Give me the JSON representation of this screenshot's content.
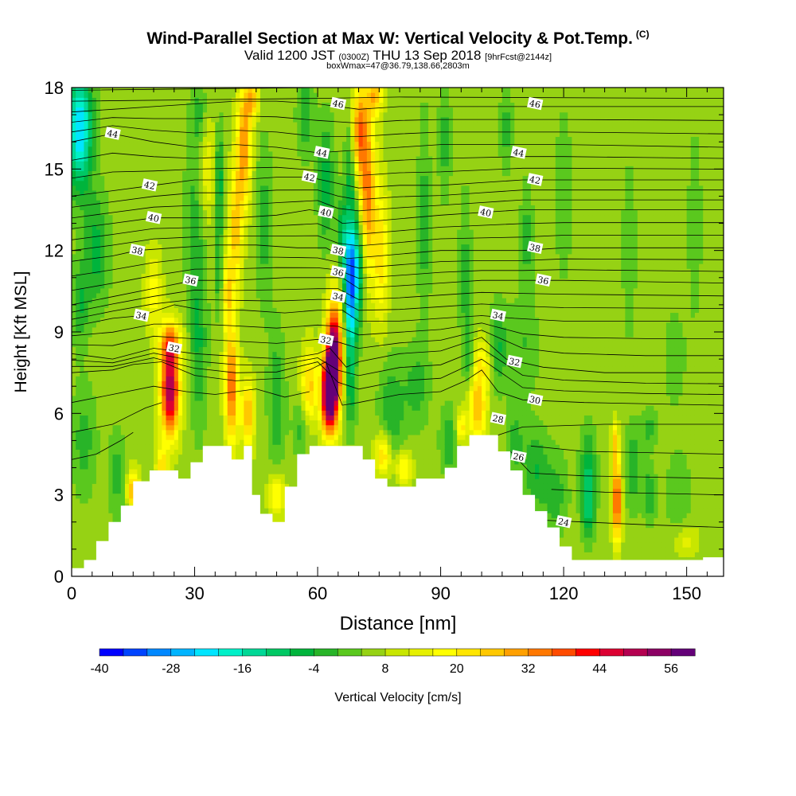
{
  "header": {
    "title": "Wind-Parallel Section at Max W: Vertical Velocity & Pot.Temp.",
    "copyright": "(C)",
    "valid_prefix": "Valid 1200 JST",
    "valid_utc": "(0300Z)",
    "valid_date": "THU 13 Sep 2018",
    "forecast_note": "[9hrFcst@2144z]",
    "box_note": "boxWmax=47@36.79,138.66,2803m"
  },
  "chart_data": {
    "type": "heatmap",
    "title": "Wind-Parallel Section at Max W: Vertical Velocity & Pot.Temp.",
    "xlabel": "Distance [nm]",
    "ylabel": "Height [Kft MSL]",
    "xlim": [
      0,
      159
    ],
    "ylim": [
      0,
      18
    ],
    "x_ticks": [
      0,
      30,
      60,
      90,
      120,
      150
    ],
    "y_ticks": [
      0,
      3,
      6,
      9,
      12,
      15,
      18
    ],
    "colorbar": {
      "label": "Vertical Velocity [cm/s]",
      "levels": [
        -40,
        -36,
        -32,
        -28,
        -24,
        -20,
        -16,
        -12,
        -8,
        -4,
        0,
        4,
        8,
        12,
        16,
        20,
        24,
        28,
        32,
        36,
        40,
        44,
        48,
        52,
        56,
        60
      ],
      "tick_labels": [
        "-40",
        "-28",
        "-16",
        "-4",
        "8",
        "20",
        "32",
        "44",
        "56"
      ],
      "colors": [
        "#0000ff",
        "#0044ff",
        "#0088ff",
        "#00b4ff",
        "#00e5ff",
        "#00f0c8",
        "#00d896",
        "#00c864",
        "#00b43c",
        "#28b428",
        "#5ac81e",
        "#96d214",
        "#c8e600",
        "#e6f000",
        "#ffff00",
        "#ffe600",
        "#ffc800",
        "#ffa000",
        "#ff7800",
        "#ff4b00",
        "#ff0000",
        "#dc0032",
        "#b40050",
        "#8c0064",
        "#640078"
      ]
    },
    "terrain": [
      [
        0,
        0.3
      ],
      [
        3,
        0.3
      ],
      [
        3,
        0.6
      ],
      [
        6,
        0.6
      ],
      [
        6,
        1.3
      ],
      [
        9,
        1.3
      ],
      [
        9,
        2
      ],
      [
        12,
        2
      ],
      [
        12,
        2.6
      ],
      [
        15,
        2.6
      ],
      [
        15,
        3.5
      ],
      [
        19,
        3.5
      ],
      [
        19,
        3.9
      ],
      [
        26,
        3.9
      ],
      [
        26,
        3.6
      ],
      [
        29,
        3.6
      ],
      [
        29,
        4.2
      ],
      [
        32,
        4.2
      ],
      [
        32,
        4.8
      ],
      [
        39,
        4.8
      ],
      [
        39,
        4.3
      ],
      [
        42,
        4.3
      ],
      [
        42,
        4.8
      ],
      [
        44,
        4.8
      ],
      [
        44,
        3
      ],
      [
        46,
        3
      ],
      [
        46,
        2.3
      ],
      [
        49,
        2.3
      ],
      [
        49,
        2
      ],
      [
        52,
        2
      ],
      [
        52,
        3.3
      ],
      [
        55,
        3.3
      ],
      [
        55,
        4.5
      ],
      [
        58,
        4.5
      ],
      [
        58,
        4.8
      ],
      [
        71,
        4.8
      ],
      [
        71,
        4.3
      ],
      [
        74,
        4.3
      ],
      [
        74,
        3.6
      ],
      [
        77,
        3.6
      ],
      [
        77,
        3.3
      ],
      [
        84,
        3.3
      ],
      [
        84,
        3.6
      ],
      [
        91,
        3.6
      ],
      [
        91,
        4
      ],
      [
        94,
        4
      ],
      [
        94,
        4.8
      ],
      [
        97,
        4.8
      ],
      [
        97,
        5.2
      ],
      [
        104,
        5.2
      ],
      [
        104,
        4.6
      ],
      [
        107,
        4.6
      ],
      [
        107,
        3.9
      ],
      [
        110,
        3.9
      ],
      [
        110,
        3
      ],
      [
        113,
        3
      ],
      [
        113,
        2.4
      ],
      [
        116,
        2.4
      ],
      [
        116,
        1.8
      ],
      [
        119,
        1.8
      ],
      [
        119,
        1.1
      ],
      [
        122,
        1.1
      ],
      [
        122,
        0.6
      ],
      [
        154,
        0.6
      ],
      [
        154,
        0.7
      ],
      [
        159,
        0.7
      ]
    ],
    "velocity_features": [
      {
        "x": 2,
        "z": 16.5,
        "value": -24,
        "note": "cyan descent upper-left"
      },
      {
        "x": 24,
        "z": 6.8,
        "value": 44,
        "note": "updraft core"
      },
      {
        "x": 39,
        "z": 7.0,
        "value": 28,
        "note": "updraft"
      },
      {
        "x": 41,
        "z": 15.8,
        "value": 24,
        "note": "upper updraft band"
      },
      {
        "x": 64,
        "z": 8.0,
        "value": 56,
        "note": "max updraft core"
      },
      {
        "x": 68,
        "z": 10.8,
        "value": -36,
        "note": "downdraft core"
      },
      {
        "x": 72,
        "z": 14.0,
        "value": 28,
        "note": "upper updraft band"
      },
      {
        "x": 99,
        "z": 6.2,
        "value": 20,
        "note": "updraft"
      },
      {
        "x": 126,
        "z": 2.8,
        "value": -16,
        "note": "downdraft"
      },
      {
        "x": 133,
        "z": 2.8,
        "value": 32,
        "note": "updraft"
      }
    ],
    "isentropes": [
      {
        "label": "24",
        "pts": [
          [
            110,
            2.1
          ],
          [
            125,
            2.0
          ],
          [
            140,
            1.9
          ],
          [
            159,
            1.8
          ]
        ],
        "labels_at": [
          [
            120,
            2.0
          ]
        ]
      },
      {
        "label": "26",
        "pts": [
          [
            107,
            4.6
          ],
          [
            112,
            3.8
          ],
          [
            125,
            3.7
          ],
          [
            159,
            3.6
          ]
        ],
        "labels_at": [
          [
            109,
            4.4
          ]
        ]
      },
      {
        "label": "28",
        "pts": [
          [
            104,
            5.2
          ],
          [
            110,
            5.5
          ],
          [
            130,
            5.6
          ],
          [
            159,
            5.6
          ]
        ],
        "labels_at": [
          [
            104,
            5.8
          ]
        ]
      },
      {
        "label": "30",
        "pts": [
          [
            0,
            7.5
          ],
          [
            10,
            7.6
          ],
          [
            15,
            7.8
          ],
          [
            22,
            7.9
          ],
          [
            30,
            7.4
          ],
          [
            40,
            7.2
          ],
          [
            52,
            7.3
          ],
          [
            58,
            7.6
          ],
          [
            62,
            7.9
          ],
          [
            66,
            6.3
          ],
          [
            70,
            6.4
          ],
          [
            80,
            6.7
          ],
          [
            90,
            6.8
          ],
          [
            96,
            7.2
          ],
          [
            100,
            7.6
          ],
          [
            104,
            6.8
          ],
          [
            110,
            6.5
          ],
          [
            125,
            6.4
          ],
          [
            159,
            6.3
          ]
        ],
        "labels_at": [
          [
            113,
            6.5
          ]
        ]
      },
      {
        "label": "32",
        "pts": [
          [
            0,
            8.2
          ],
          [
            10,
            8.0
          ],
          [
            20,
            8.4
          ],
          [
            25,
            8.3
          ],
          [
            30,
            8.2
          ],
          [
            40,
            8.1
          ],
          [
            52,
            8.0
          ],
          [
            60,
            8.2
          ],
          [
            63,
            8.4
          ],
          [
            67,
            7.7
          ],
          [
            70,
            7.9
          ],
          [
            80,
            8.2
          ],
          [
            90,
            8.3
          ],
          [
            96,
            8.6
          ],
          [
            100,
            8.8
          ],
          [
            106,
            8.0
          ],
          [
            115,
            7.7
          ],
          [
            130,
            7.5
          ],
          [
            159,
            7.5
          ]
        ],
        "labels_at": [
          [
            25,
            8.4
          ],
          [
            62,
            8.7
          ],
          [
            108,
            7.9
          ]
        ]
      },
      {
        "label": "34",
        "pts": [
          [
            0,
            9.2
          ],
          [
            10,
            9.5
          ],
          [
            17,
            9.6
          ],
          [
            25,
            10.0
          ],
          [
            32,
            9.8
          ],
          [
            42,
            9.8
          ],
          [
            52,
            9.7
          ],
          [
            60,
            9.8
          ],
          [
            66,
            9.8
          ],
          [
            70,
            9.4
          ],
          [
            80,
            9.4
          ],
          [
            90,
            9.5
          ],
          [
            100,
            9.6
          ],
          [
            108,
            9.5
          ],
          [
            120,
            9.4
          ],
          [
            159,
            9.4
          ]
        ],
        "labels_at": [
          [
            17,
            9.6
          ],
          [
            65,
            10.3
          ],
          [
            104,
            9.6
          ]
        ]
      },
      {
        "label": "36",
        "pts": [
          [
            0,
            10.0
          ],
          [
            10,
            10.3
          ],
          [
            20,
            10.6
          ],
          [
            30,
            10.9
          ],
          [
            40,
            10.9
          ],
          [
            52,
            11.0
          ],
          [
            60,
            11.0
          ],
          [
            66,
            11.0
          ],
          [
            70,
            10.6
          ],
          [
            80,
            10.7
          ],
          [
            90,
            10.8
          ],
          [
            100,
            10.9
          ],
          [
            110,
            10.9
          ],
          [
            120,
            10.9
          ],
          [
            159,
            10.8
          ]
        ],
        "labels_at": [
          [
            29,
            10.9
          ],
          [
            65,
            11.2
          ],
          [
            115,
            10.9
          ]
        ]
      },
      {
        "label": "38",
        "pts": [
          [
            0,
            11.6
          ],
          [
            10,
            11.8
          ],
          [
            16,
            12.0
          ],
          [
            25,
            12.1
          ],
          [
            35,
            12.2
          ],
          [
            45,
            12.2
          ],
          [
            55,
            12.1
          ],
          [
            62,
            12.1
          ],
          [
            67,
            11.7
          ],
          [
            75,
            11.8
          ],
          [
            90,
            12.0
          ],
          [
            100,
            12.0
          ],
          [
            110,
            12.0
          ],
          [
            120,
            12.1
          ],
          [
            159,
            12.1
          ]
        ],
        "labels_at": [
          [
            16,
            12.0
          ],
          [
            65,
            12.0
          ],
          [
            113,
            12.1
          ]
        ]
      },
      {
        "label": "40",
        "pts": [
          [
            0,
            12.8
          ],
          [
            10,
            13.0
          ],
          [
            20,
            13.2
          ],
          [
            30,
            13.2
          ],
          [
            40,
            13.2
          ],
          [
            50,
            13.3
          ],
          [
            58,
            13.5
          ],
          [
            62,
            13.4
          ],
          [
            66,
            13.0
          ],
          [
            75,
            13.1
          ],
          [
            90,
            13.3
          ],
          [
            100,
            13.4
          ],
          [
            110,
            13.5
          ],
          [
            120,
            13.5
          ],
          [
            159,
            13.5
          ]
        ],
        "labels_at": [
          [
            20,
            13.2
          ],
          [
            62,
            13.4
          ],
          [
            101,
            13.4
          ]
        ]
      },
      {
        "label": "42",
        "pts": [
          [
            0,
            14.0
          ],
          [
            10,
            14.2
          ],
          [
            20,
            14.4
          ],
          [
            30,
            14.6
          ],
          [
            40,
            14.6
          ],
          [
            50,
            14.7
          ],
          [
            58,
            14.7
          ],
          [
            64,
            14.5
          ],
          [
            70,
            14.3
          ],
          [
            80,
            14.4
          ],
          [
            90,
            14.4
          ],
          [
            100,
            14.5
          ],
          [
            110,
            14.6
          ],
          [
            120,
            14.6
          ],
          [
            159,
            14.6
          ]
        ],
        "labels_at": [
          [
            19,
            14.4
          ],
          [
            58,
            14.7
          ],
          [
            113,
            14.6
          ]
        ]
      },
      {
        "label": "44",
        "pts": [
          [
            0,
            16.0
          ],
          [
            10,
            16.3
          ],
          [
            20,
            16.0
          ],
          [
            30,
            15.8
          ],
          [
            40,
            15.9
          ],
          [
            50,
            15.8
          ],
          [
            60,
            15.6
          ],
          [
            70,
            15.7
          ],
          [
            80,
            15.8
          ],
          [
            90,
            15.9
          ],
          [
            100,
            15.9
          ],
          [
            110,
            15.9
          ],
          [
            120,
            15.9
          ],
          [
            159,
            15.8
          ]
        ],
        "labels_at": [
          [
            10,
            16.3
          ],
          [
            61,
            15.6
          ],
          [
            109,
            15.6
          ]
        ]
      },
      {
        "label": "46",
        "pts": [
          [
            0,
            17.1
          ],
          [
            10,
            17.2
          ],
          [
            20,
            17.3
          ],
          [
            30,
            17.4
          ],
          [
            40,
            17.5
          ],
          [
            50,
            17.5
          ],
          [
            60,
            17.4
          ],
          [
            65,
            17.3
          ],
          [
            70,
            17.2
          ],
          [
            80,
            17.3
          ],
          [
            90,
            17.3
          ],
          [
            100,
            17.3
          ],
          [
            110,
            17.3
          ],
          [
            120,
            17.3
          ],
          [
            159,
            17.3
          ]
        ],
        "labels_at": [
          [
            65,
            17.4
          ],
          [
            113,
            17.4
          ]
        ]
      }
    ]
  }
}
